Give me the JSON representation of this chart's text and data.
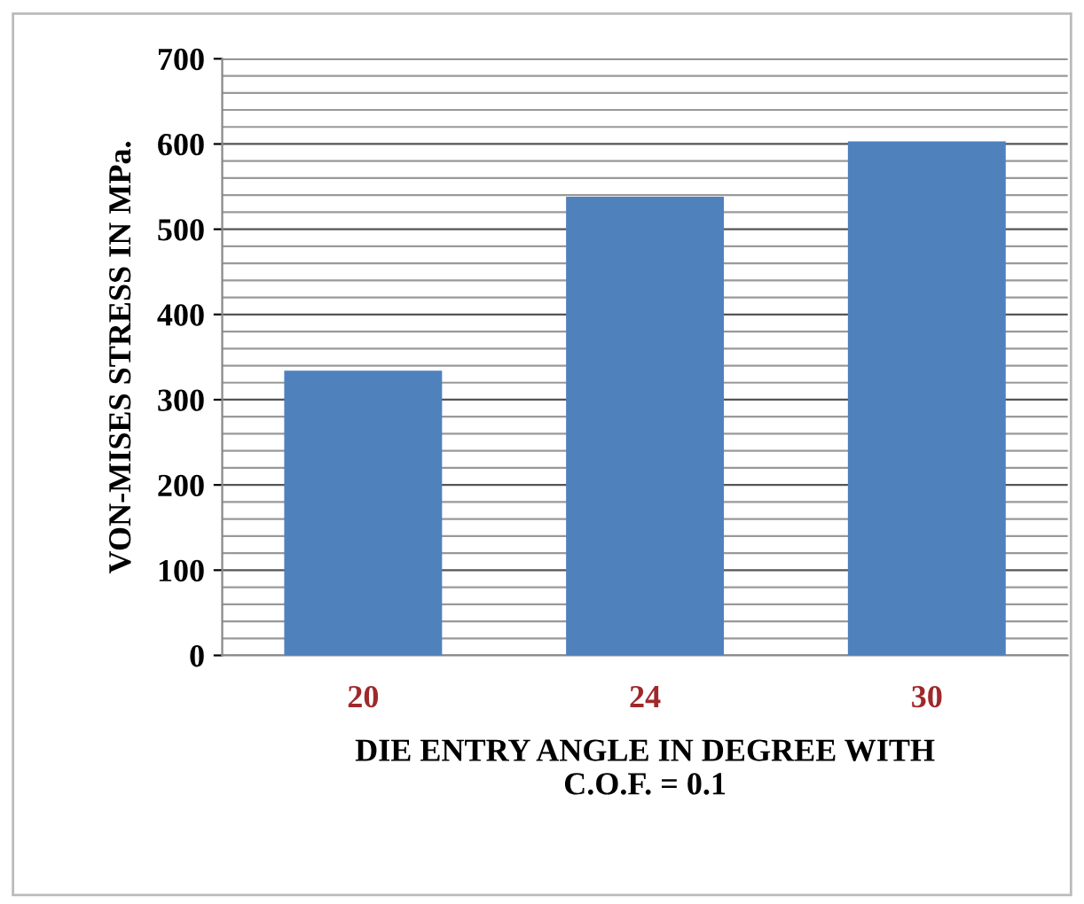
{
  "chart_data": {
    "type": "bar",
    "xlabel": "DIE ENTRY ANGLE IN DEGREE WITH\nC.O.F. = 0.1",
    "ylabel": "VON-MISES STRESS IN MPa.",
    "categories": [
      "20",
      "24",
      "30"
    ],
    "values": [
      334,
      538,
      603
    ],
    "color": "#4f81bd",
    "ylim": [
      0,
      700
    ],
    "yticks": [
      0,
      {
        "value": 20,
        "label": null
      },
      {
        "value": 40,
        "label": null
      },
      {
        "value": 60,
        "label": null
      },
      {
        "value": 80,
        "label": null
      },
      100,
      {
        "value": 120,
        "label": null
      },
      {
        "value": 140,
        "label": null
      },
      {
        "value": 160,
        "label": null
      },
      {
        "value": 180,
        "label": null
      },
      200,
      {
        "value": 220,
        "label": null
      },
      {
        "value": 240,
        "label": null
      },
      {
        "value": 260,
        "label": null
      },
      {
        "value": 280,
        "label": null
      },
      300,
      {
        "value": 320,
        "label": null
      },
      {
        "value": 340,
        "label": null
      },
      {
        "value": 360,
        "label": null
      },
      {
        "value": 380,
        "label": null
      },
      400,
      {
        "value": 420,
        "label": null
      },
      {
        "value": 440,
        "label": null
      },
      {
        "value": 460,
        "label": null
      },
      {
        "value": 480,
        "label": null
      },
      500,
      {
        "value": 520,
        "label": null
      },
      {
        "value": 540,
        "label": null
      },
      {
        "value": 560,
        "label": null
      },
      {
        "value": 580,
        "label": null
      },
      600,
      {
        "value": 620,
        "label": null
      },
      {
        "value": 640,
        "label": null
      },
      {
        "value": 660,
        "label": null
      },
      {
        "value": 680,
        "label": null
      },
      700
    ],
    "grid": "y"
  }
}
